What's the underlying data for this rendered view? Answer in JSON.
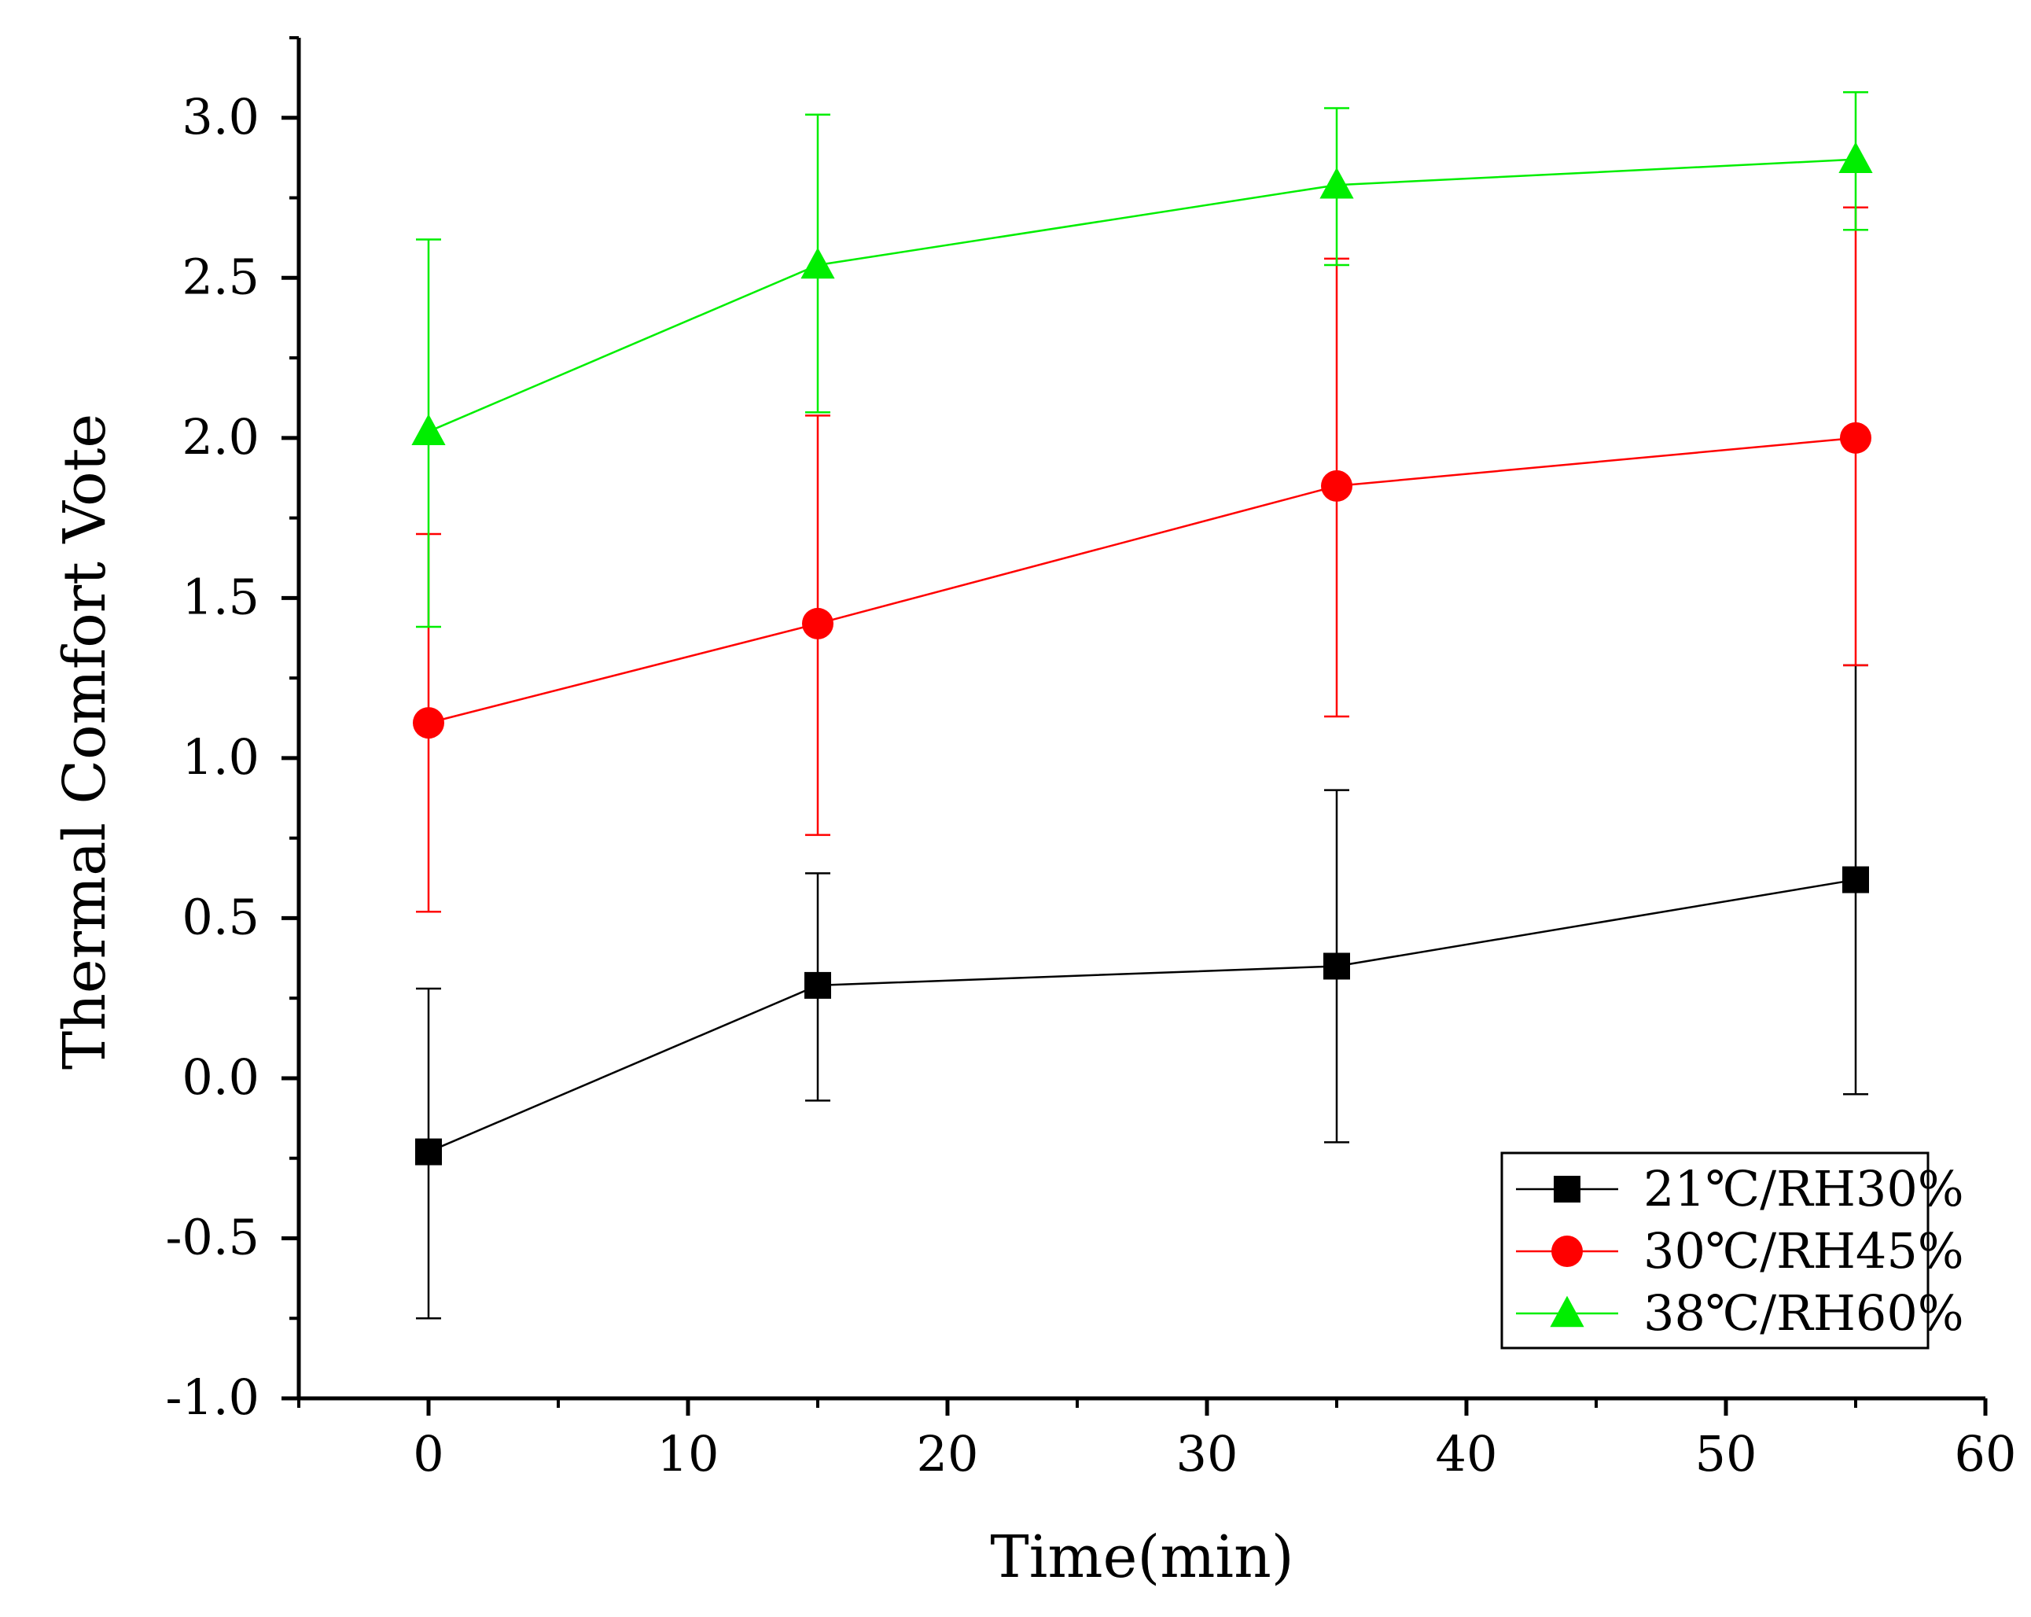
{
  "chart_data": {
    "type": "line",
    "title": "",
    "xlabel": "Time(min)",
    "ylabel": "Thermal Comfort Vote",
    "xlim": [
      -5,
      60
    ],
    "ylim": [
      -1.0,
      3.25
    ],
    "x_ticks": [
      0,
      10,
      20,
      30,
      40,
      50,
      60
    ],
    "x_tick_labels": [
      "0",
      "10",
      "20",
      "30",
      "40",
      "50",
      "60"
    ],
    "y_ticks": [
      -1.0,
      -0.5,
      0.0,
      0.5,
      1.0,
      1.5,
      2.0,
      2.5,
      3.0
    ],
    "y_tick_labels": [
      "-1.0",
      "-0.5",
      "0.0",
      "0.5",
      "1.0",
      "1.5",
      "2.0",
      "2.5",
      "3.0"
    ],
    "x": [
      0,
      15,
      35,
      55
    ],
    "grid": false,
    "legend_position": "bottom-right",
    "series": [
      {
        "name": "21℃/RH30%",
        "color": "#000000",
        "marker": "square",
        "values": [
          -0.23,
          0.29,
          0.35,
          0.62
        ],
        "error_low": [
          -0.75,
          -0.07,
          -0.2,
          -0.05
        ],
        "error_high": [
          0.28,
          0.64,
          0.9,
          1.29
        ]
      },
      {
        "name": "30℃/RH45%",
        "color": "#ff0000",
        "marker": "circle",
        "values": [
          1.11,
          1.42,
          1.85,
          2.0
        ],
        "error_low": [
          0.52,
          0.76,
          1.13,
          1.29
        ],
        "error_high": [
          1.7,
          2.07,
          2.56,
          2.72
        ]
      },
      {
        "name": "38℃/RH60%",
        "color": "#00ee00",
        "marker": "triangle",
        "values": [
          2.02,
          2.54,
          2.79,
          2.87
        ],
        "error_low": [
          1.41,
          2.08,
          2.54,
          2.65
        ],
        "error_high": [
          2.62,
          3.01,
          3.03,
          3.08
        ]
      }
    ]
  }
}
